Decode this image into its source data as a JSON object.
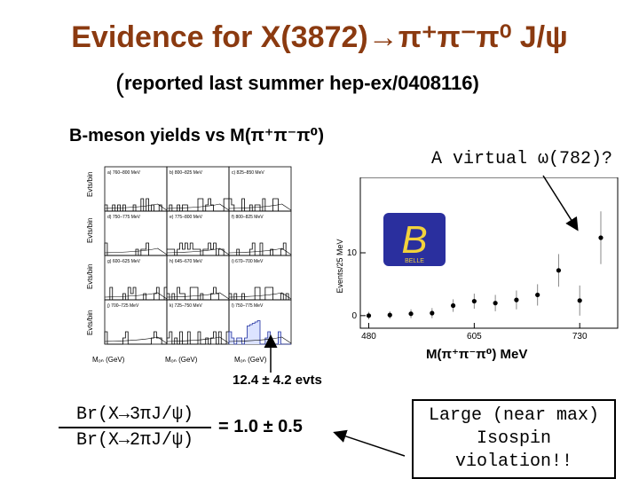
{
  "title": "Evidence for X(3872)→π⁺π⁻π⁰ J/ψ",
  "subtitle": {
    "paren_open": "(",
    "text": "reported last summer hep-ex/0408116)"
  },
  "section_label": "B-meson yields vs M(π⁺π⁻π⁰)",
  "virtual_label": "A virtual ω(782)?",
  "left_panels": {
    "y_label": "Evts/bin",
    "x_labels": [
      "Mₒₙ (GeV)",
      "Mₒₙ (GeV)",
      "Mₒₙ (GeV)"
    ],
    "panel_titles": [
      "a) 760–800 MeV",
      "b) 800–825 MeV",
      "c) 825–850 MeV",
      "d) 750–775 MeV",
      "e) 775–800 MeV",
      "f) 800–825 MeV",
      "g) 600–625 MeV",
      "h) 645–670 MeV",
      "i) 670–700 MeV",
      "j) 700–725 MeV",
      "k) 725–750 MeV",
      "l) 750–775 MeV"
    ]
  },
  "chart_data": {
    "type": "scatter",
    "ylabel": "Events/25 MeV",
    "xlabel": "M(π⁺π⁻π⁰) MeV",
    "x_ticks": [
      "480",
      "605",
      "730"
    ],
    "y_ticks": [
      "0",
      "10"
    ],
    "xlim": [
      470,
      775
    ],
    "ylim": [
      -2,
      22
    ],
    "points": [
      {
        "x": 480,
        "y": 0.0,
        "err": 0.6
      },
      {
        "x": 505,
        "y": 0.1,
        "err": 0.6
      },
      {
        "x": 530,
        "y": 0.3,
        "err": 0.7
      },
      {
        "x": 555,
        "y": 0.4,
        "err": 0.8
      },
      {
        "x": 580,
        "y": 1.6,
        "err": 1.0
      },
      {
        "x": 605,
        "y": 2.3,
        "err": 1.2
      },
      {
        "x": 630,
        "y": 2.0,
        "err": 1.3
      },
      {
        "x": 655,
        "y": 2.5,
        "err": 1.5
      },
      {
        "x": 680,
        "y": 3.3,
        "err": 1.7
      },
      {
        "x": 705,
        "y": 7.2,
        "err": 2.6
      },
      {
        "x": 730,
        "y": 2.4,
        "err": 2.4
      },
      {
        "x": 755,
        "y": 12.4,
        "err": 4.2
      }
    ]
  },
  "logo_text": "B",
  "logo_sub": "BELLE",
  "evts_label": "12.4 ± 4.2 evts",
  "ratio": {
    "numerator": "Br(X→3πJ/ψ)",
    "denominator": "Br(X→2πJ/ψ)",
    "value": "= 1.0 ± 0.5"
  },
  "conclusion": {
    "line1": "Large (near max)",
    "line2": "Isospin violation!!"
  },
  "colors": {
    "title": "#8b3a10",
    "logo_bg": "#2a2f9e",
    "logo_fg": "#f2d23c"
  }
}
